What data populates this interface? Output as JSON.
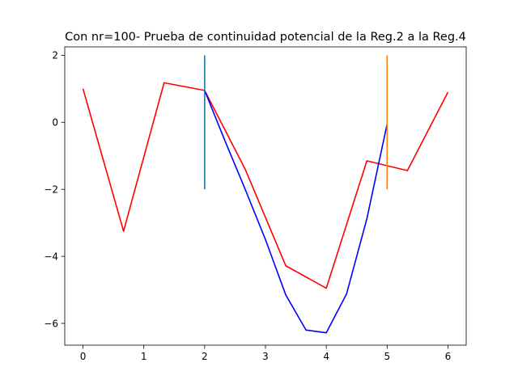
{
  "chart_data": {
    "type": "line",
    "title": "Con nr=100- Prueba de continuidad potencial de la Reg.2 a la Reg.4",
    "xlabel": "",
    "ylabel": "",
    "xlim": [
      -0.3,
      6.3
    ],
    "ylim": [
      -6.65,
      2.25
    ],
    "xticks": [
      0,
      1,
      2,
      3,
      4,
      5,
      6
    ],
    "yticks": [
      -6,
      -4,
      -2,
      0,
      2
    ],
    "grid": false,
    "legend": "none",
    "series": [
      {
        "color": "#ff0000",
        "x": [
          0,
          0.6667,
          1.3333,
          2.0,
          2.6667,
          3.3333,
          4.0,
          4.6667,
          5.3333,
          6.0
        ],
        "y": [
          1.0,
          -3.25,
          1.18,
          0.95,
          -1.4,
          -4.28,
          -4.95,
          -1.15,
          -1.44,
          0.9
        ]
      },
      {
        "color": "#0000ff",
        "x": [
          2.0,
          2.3333,
          2.6667,
          3.0,
          3.3333,
          3.6667,
          4.0,
          4.3333,
          4.6667,
          5.0
        ],
        "y": [
          0.95,
          -0.55,
          -2.0,
          -3.5,
          -5.15,
          -6.2,
          -6.28,
          -5.12,
          -2.88,
          -0.05
        ]
      },
      {
        "color": "#1f77b4",
        "x": [
          2,
          2
        ],
        "y": [
          -2,
          2
        ]
      },
      {
        "color": "#ff7f0e",
        "x": [
          5,
          5
        ],
        "y": [
          -2,
          2
        ]
      }
    ]
  }
}
